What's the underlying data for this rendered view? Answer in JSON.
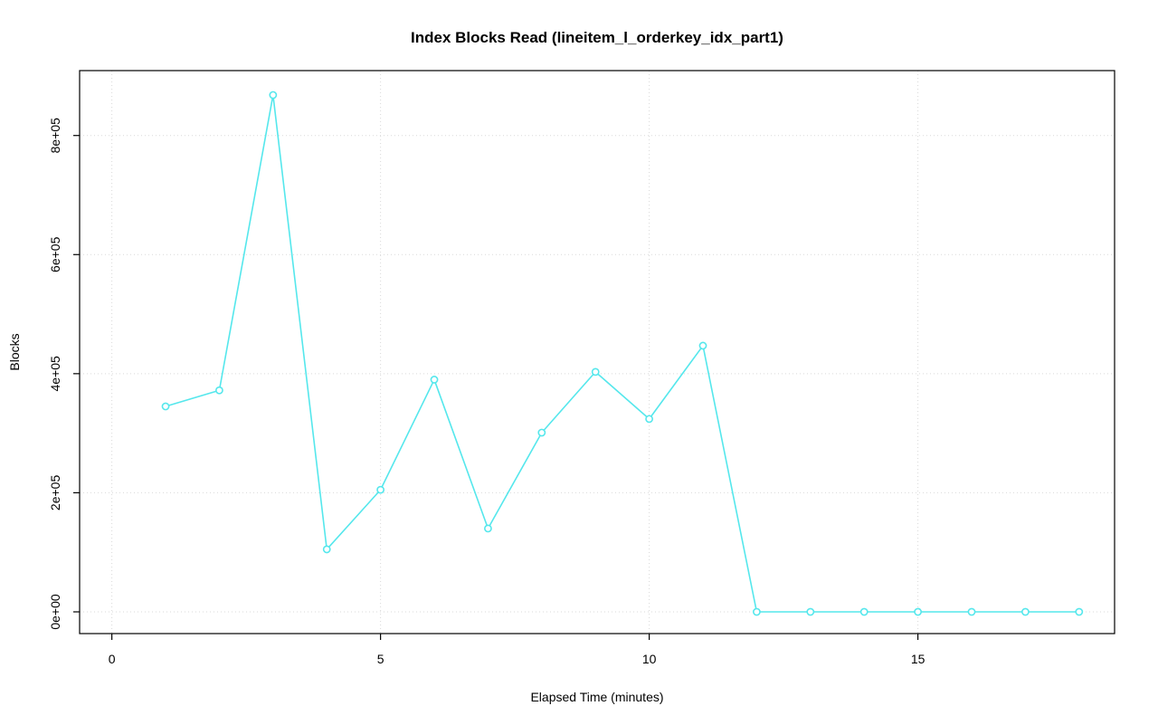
{
  "chart_data": {
    "type": "line",
    "title": "Index Blocks Read (lineitem_l_orderkey_idx_part1)",
    "xlabel": "Elapsed Time (minutes)",
    "ylabel": "Blocks",
    "x": [
      1,
      2,
      3,
      4,
      5,
      6,
      7,
      8,
      9,
      10,
      11,
      12,
      13,
      14,
      15,
      16,
      17,
      18
    ],
    "y": [
      345000,
      372000,
      868000,
      105000,
      205000,
      390000,
      140000,
      301000,
      403000,
      324000,
      447000,
      0,
      0,
      0,
      0,
      0,
      0,
      0
    ],
    "xlim": [
      -0.6,
      18.66
    ],
    "ylim": [
      -36500,
      909000
    ],
    "xticks": {
      "values": [
        0,
        5,
        10,
        15
      ],
      "labels": [
        "0",
        "5",
        "10",
        "15"
      ]
    },
    "yticks": {
      "values": [
        0,
        200000,
        400000,
        600000,
        800000
      ],
      "labels": [
        "0e+00",
        "2e+05",
        "4e+05",
        "6e+05",
        "8e+05"
      ]
    },
    "grid": true,
    "legend": "none",
    "line_color": "#55e7ec",
    "marker": "open-circle",
    "grid_color": "#d9d9d9",
    "axis_color": "#000000"
  }
}
